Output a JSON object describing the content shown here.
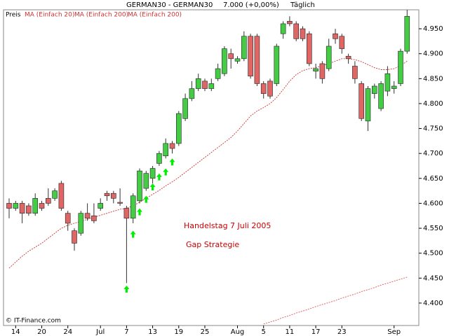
{
  "chart_data": {
    "type": "candlestick",
    "header": [
      "GERMAN30 - GERMAN30",
      "7.000 (+0,00%)",
      "Täglich"
    ],
    "legend": [
      "Preis",
      "MA (Einfach 20)",
      "MA (Einfach 200)",
      "MA (Einfach 200)"
    ],
    "annotations": [
      "Handelstag 7 Juli 2005",
      "Gap Strategie"
    ],
    "footer": "© IT-Finance.com",
    "categories": [
      null,
      "14",
      null,
      null,
      null,
      "20",
      null,
      null,
      null,
      "24",
      null,
      null,
      null,
      null,
      "Jul",
      null,
      null,
      null,
      "7",
      null,
      null,
      null,
      "13",
      null,
      null,
      null,
      "19",
      null,
      null,
      null,
      "25",
      null,
      null,
      null,
      null,
      "Aug",
      null,
      null,
      null,
      "5",
      null,
      null,
      null,
      "11",
      null,
      null,
      null,
      "17",
      null,
      null,
      null,
      "23",
      null,
      null,
      null,
      null,
      null,
      null,
      null,
      "Sep",
      null,
      null
    ],
    "open": [
      4600,
      4590,
      4600,
      4595,
      4580,
      4600,
      4610,
      4610,
      4640,
      4580,
      4545,
      4540,
      4580,
      4575,
      4590,
      4620,
      4620,
      4602,
      4590,
      4570,
      4605,
      4630,
      4650,
      4680,
      4695,
      4720,
      4720,
      4770,
      4810,
      4830,
      4845,
      4830,
      4850,
      4860,
      4900,
      4885,
      4890,
      4935,
      4935,
      4840,
      4845,
      4840,
      4940,
      4965,
      4960,
      4950,
      4940,
      4865,
      4880,
      4870,
      4940,
      4935,
      4895,
      4875,
      4840,
      4765,
      4820,
      4790,
      4825,
      4830,
      4840,
      4905
    ],
    "high": [
      4610,
      4605,
      4605,
      4600,
      4620,
      4605,
      4630,
      4630,
      4645,
      4585,
      4550,
      4585,
      4600,
      4600,
      4610,
      4625,
      4625,
      4630,
      4595,
      4620,
      4670,
      4665,
      4675,
      4705,
      4730,
      4725,
      4785,
      4820,
      4845,
      4860,
      4850,
      4850,
      4880,
      4915,
      4910,
      4895,
      4945,
      4940,
      4940,
      4845,
      4850,
      4920,
      4965,
      4975,
      4965,
      4955,
      4945,
      4880,
      4885,
      4930,
      4950,
      4940,
      4900,
      4885,
      4845,
      4835,
      4840,
      4845,
      4875,
      4845,
      4910,
      4988
    ],
    "low": [
      4570,
      4585,
      4560,
      4575,
      4575,
      4585,
      4595,
      4605,
      4585,
      4545,
      4505,
      4535,
      4565,
      4560,
      4585,
      4605,
      4600,
      4595,
      4440,
      4560,
      4600,
      4625,
      4640,
      4675,
      4690,
      4700,
      4715,
      4765,
      4805,
      4825,
      4825,
      4825,
      4845,
      4855,
      4870,
      4880,
      4885,
      4850,
      4835,
      4810,
      4810,
      4835,
      4930,
      4955,
      4925,
      4925,
      4875,
      4850,
      4840,
      4865,
      4920,
      4900,
      4880,
      4840,
      4765,
      4745,
      4810,
      4785,
      4815,
      4820,
      4835,
      4900
    ],
    "close": [
      4590,
      4600,
      4580,
      4580,
      4610,
      4590,
      4600,
      4625,
      4590,
      4560,
      4520,
      4580,
      4570,
      4565,
      4600,
      4615,
      4610,
      4600,
      4570,
      4615,
      4665,
      4660,
      4670,
      4700,
      4720,
      4710,
      4780,
      4810,
      4830,
      4850,
      4830,
      4840,
      4870,
      4910,
      4890,
      4890,
      4935,
      4855,
      4840,
      4820,
      4815,
      4915,
      4960,
      4960,
      4930,
      4930,
      4880,
      4870,
      4850,
      4915,
      4930,
      4910,
      4890,
      4850,
      4770,
      4830,
      4835,
      4840,
      4860,
      4835,
      4905,
      4975
    ],
    "up_color": "#44cc44",
    "down_color": "#e06666",
    "lines": [
      {
        "color": "#cc3333",
        "values": [
          4470,
          4482,
          4494,
          4504,
          4512,
          4520,
          4530,
          4540,
          4550,
          4556,
          4560,
          4564,
          4568,
          4572,
          4576,
          4580,
          4584,
          4588,
          4590,
          4595,
          4602,
          4610,
          4618,
          4626,
          4635,
          4643,
          4652,
          4662,
          4672,
          4682,
          4692,
          4702,
          4712,
          4722,
          4732,
          4745,
          4760,
          4775,
          4785,
          4792,
          4800,
          4812,
          4828,
          4845,
          4858,
          4866,
          4870,
          4872,
          4876,
          4880,
          4885,
          4890,
          4890,
          4888,
          4884,
          4878,
          4872,
          4868,
          4868,
          4870,
          4876,
          4885
        ]
      },
      {
        "color": "#dd5555",
        "values": [
          null,
          null,
          null,
          null,
          null,
          null,
          null,
          null,
          null,
          null,
          null,
          null,
          null,
          null,
          null,
          null,
          null,
          null,
          null,
          null,
          null,
          null,
          null,
          null,
          null,
          null,
          null,
          null,
          null,
          null,
          null,
          null,
          null,
          null,
          null,
          null,
          null,
          null,
          null,
          4358,
          4362,
          4366,
          4371,
          4375,
          4380,
          4384,
          4388,
          4393,
          4397,
          4401,
          4405,
          4410,
          4414,
          4418,
          4423,
          4427,
          4431,
          4436,
          4440,
          4444,
          4448,
          4452
        ]
      }
    ],
    "signals": {
      "color": "#00ee00",
      "x": [
        18,
        19,
        20,
        21,
        22,
        23,
        24,
        25
      ],
      "y": [
        4435,
        4545,
        4590,
        4615,
        4640,
        4660,
        4670,
        4690
      ]
    },
    "ylim": [
      4355,
      4988
    ],
    "yticks": [
      {
        "value": 4400,
        "label": "4.400"
      },
      {
        "value": 4450,
        "label": "4.450"
      },
      {
        "value": 4500,
        "label": "4.500"
      },
      {
        "value": 4550,
        "label": "4.550"
      },
      {
        "value": 4600,
        "label": "4.600"
      },
      {
        "value": 4650,
        "label": "4.650"
      },
      {
        "value": 4700,
        "label": "4.700"
      },
      {
        "value": 4750,
        "label": "4.750"
      },
      {
        "value": 4800,
        "label": "4.800"
      },
      {
        "value": 4850,
        "label": "4.850"
      },
      {
        "value": 4900,
        "label": "4.900"
      },
      {
        "value": 4950,
        "label": "4.950"
      }
    ],
    "grid": false
  }
}
